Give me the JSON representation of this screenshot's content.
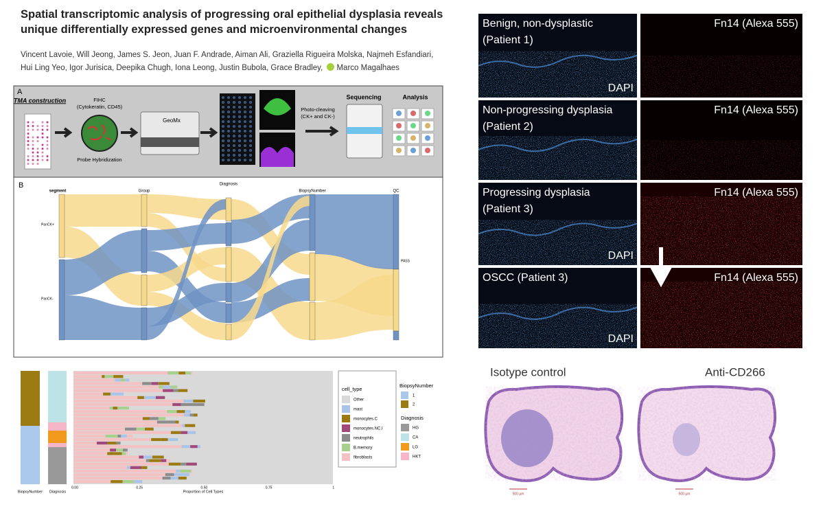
{
  "header": {
    "title_lines": [
      "Spatial transcriptomic analysis of progressing oral epithelial dysplasia reveals",
      "unique differentially expressed genes and microenvironmental changes"
    ],
    "authors_lines": [
      "Vincent Lavoie, Will Jeong, James S. Jeon, Juan F. Andrade, Aiman Ali, Graziella Rigueira Molska, Najmeh Esfandiari,",
      "Hui Ling Yeo, Igor Jurisica, Deepika Chugh, Iona Leong, Justin Bubola, Grace Bradley,"
    ],
    "orcid_author": "Marco Magalhaes"
  },
  "panel_a": {
    "label": "A",
    "tma": "TMA construction",
    "fihc": [
      "FIHC",
      "(Cytokeratin, CD45)"
    ],
    "probe": "Probe Hybridization",
    "geomx": "GeoMx",
    "photo": [
      "Photo-cleaving",
      "(CK+ and CK-)"
    ],
    "sequencing": "Sequencing",
    "analysis": "Analysis"
  },
  "panel_b": {
    "label": "B",
    "columns": [
      "segment",
      "Group",
      "Diagnosis",
      "BiopsyNumber",
      "QC"
    ],
    "segments": [
      "PanCK+",
      "PanCK-"
    ],
    "qc": "PASS"
  },
  "cell_chart": {
    "bar_labels": [
      "BiopsyNumber",
      "Diagnosis"
    ],
    "xticks": [
      "0.00",
      "0.25",
      "0.50",
      "0.75",
      "1"
    ],
    "xlabel": "Proportion of Cell Types",
    "cell_type": {
      "title": "cell_type",
      "items": [
        "Other",
        "mast",
        "monocytes.C",
        "monocytes.NC.I",
        "neutrophils",
        "B.memory",
        "fibroblasts"
      ]
    },
    "biopsy": {
      "title": "BiopsyNumber",
      "items": [
        "1",
        "2"
      ]
    },
    "diagnosis": {
      "title": "Diagnosis",
      "items": [
        "HG",
        "CA",
        "LG",
        "HKT"
      ]
    }
  },
  "microscopy": {
    "rows": [
      {
        "label": [
          "Benign, non-dysplastic",
          "(Patient 1)"
        ],
        "dapi": "DAPI",
        "fn14": "Fn14 (Alexa 555)"
      },
      {
        "label": [
          "Non-progressing dysplasia",
          "(Patient 2)"
        ],
        "fn14": "Fn14 (Alexa 555)"
      },
      {
        "label": [
          "Progressing dysplasia",
          "(Patient 3)"
        ],
        "dapi": "DAPI",
        "fn14": "Fn14 (Alexa 555)"
      },
      {
        "label": [
          "OSCC (Patient 3)"
        ],
        "dapi": "DAPI",
        "fn14": "Fn14 (Alexa 555)"
      }
    ]
  },
  "histology": {
    "left": "Isotype control",
    "right": "Anti-CD266",
    "scale": "500 µm"
  }
}
